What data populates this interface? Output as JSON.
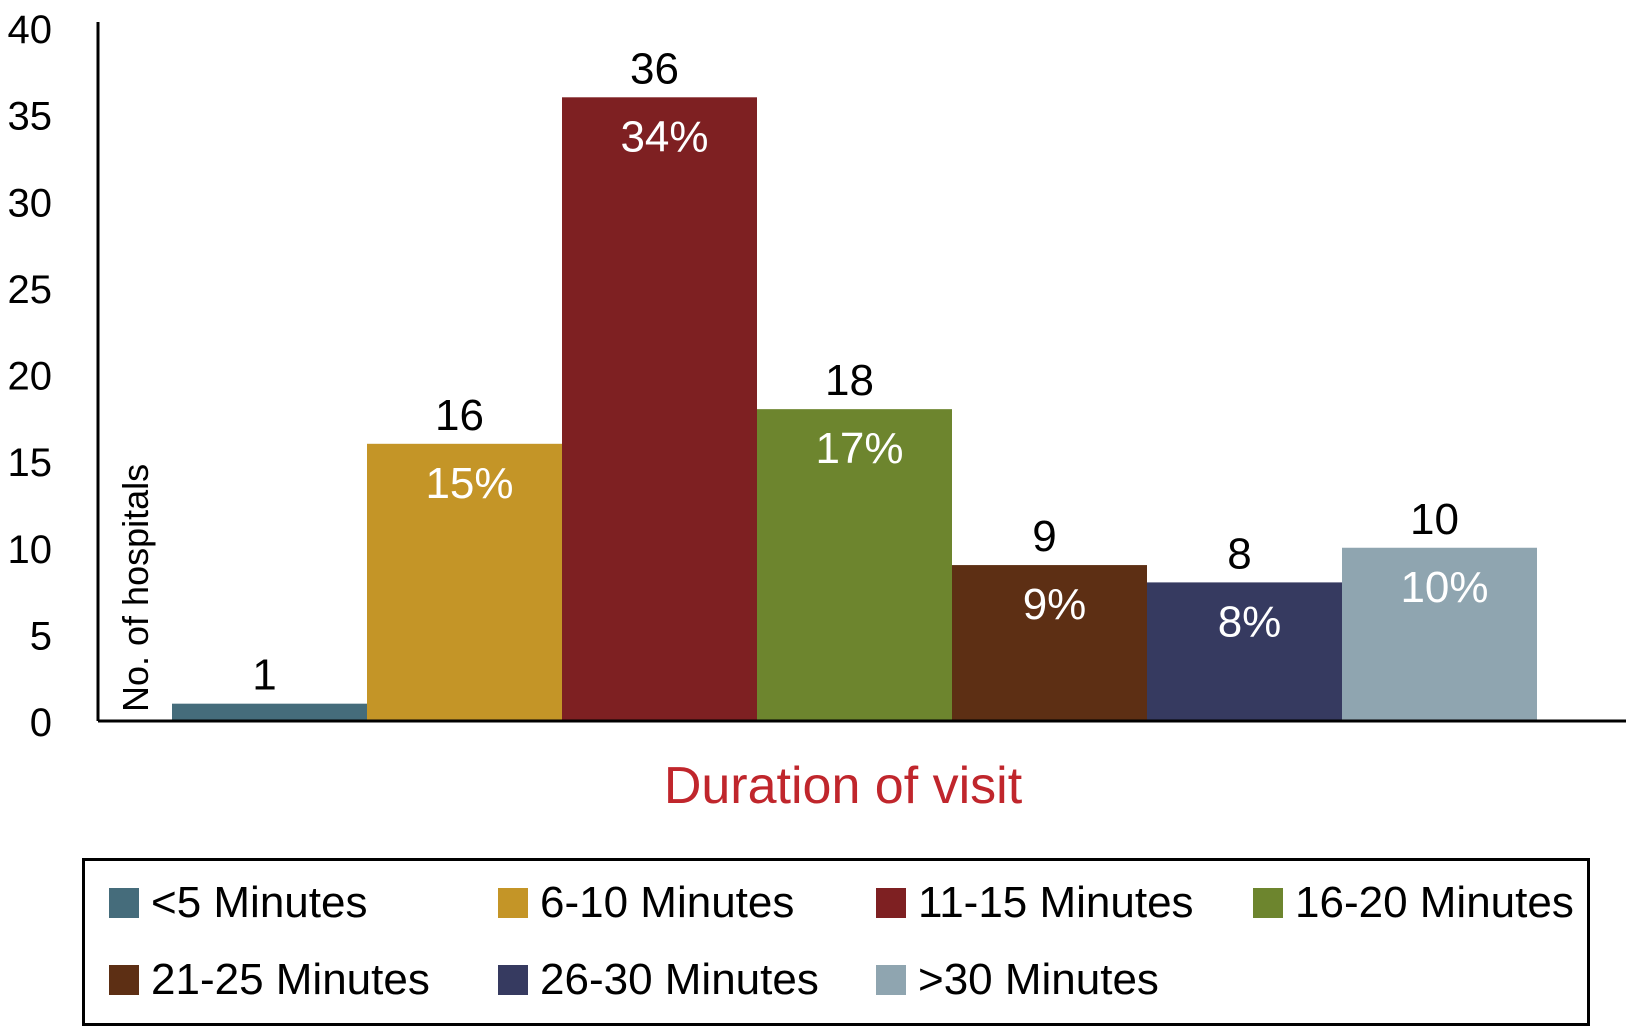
{
  "chart_data": {
    "type": "bar",
    "categories": [
      "<5 Minutes",
      "6-10 Minutes",
      "11-15 Minutes",
      "16-20 Minutes",
      "21-25 Minutes",
      "26-30 Minutes",
      ">30 Minutes"
    ],
    "values": [
      1,
      16,
      36,
      18,
      9,
      8,
      10
    ],
    "percent_labels": [
      "",
      "15%",
      "34%",
      "17%",
      "9%",
      "8%",
      "10%"
    ],
    "colors": [
      "#456c7b",
      "#c49527",
      "#7e2022",
      "#6d852e",
      "#5d2f14",
      "#363a60",
      "#8fa5b0"
    ],
    "xlabel": "Duration of visit",
    "ylabel": "No. of hospitals",
    "ylim": [
      0,
      40
    ],
    "yticks": [
      0,
      5,
      10,
      15,
      20,
      25,
      30,
      35,
      40
    ],
    "grid": false,
    "legend_position": "bottom",
    "xlabel_color": "#c0262c"
  }
}
